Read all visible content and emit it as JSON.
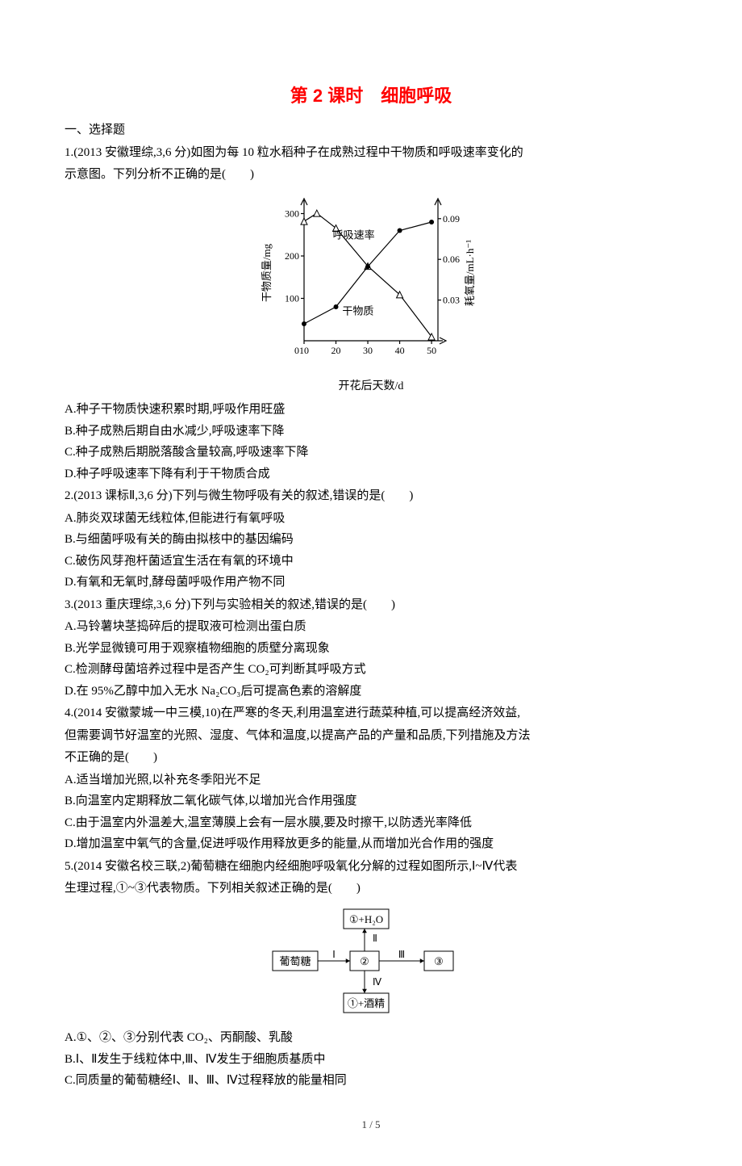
{
  "title": "第 2 课时　细胞呼吸",
  "section_heading": "一、选择题",
  "footer": "1 / 5",
  "questions": [
    {
      "stem_lines": [
        "1.(2013 安徽理综,3,6 分)如图为每 10 粒水稻种子在成熟过程中干物质和呼吸速率变化的",
        "示意图。下列分析不正确的是(　　)"
      ],
      "options": [
        "A.种子干物质快速积累时期,呼吸作用旺盛",
        "B.种子成熟后期自由水减少,呼吸速率下降",
        "C.种子成熟后期脱落酸含量较高,呼吸速率下降",
        "D.种子呼吸速率下降有利于干物质合成"
      ]
    },
    {
      "stem_lines": [
        "2.(2013 课标Ⅱ,3,6 分)下列与微生物呼吸有关的叙述,错误的是(　　)"
      ],
      "options": [
        "A.肺炎双球菌无线粒体,但能进行有氧呼吸",
        "B.与细菌呼吸有关的酶由拟核中的基因编码",
        "C.破伤风芽孢杆菌适宜生活在有氧的环境中",
        "D.有氧和无氧时,酵母菌呼吸作用产物不同"
      ]
    },
    {
      "stem_lines": [
        "3.(2013 重庆理综,3,6 分)下列与实验相关的叙述,错误的是(　　)"
      ],
      "options": [
        "A.马铃薯块茎捣碎后的提取液可检测出蛋白质",
        "B.光学显微镜可用于观察植物细胞的质壁分离现象",
        "C.检测酵母菌培养过程中是否产生 CO₂可判断其呼吸方式",
        "D.在 95%乙醇中加入无水 Na₂CO₃后可提高色素的溶解度"
      ]
    },
    {
      "stem_lines": [
        "4.(2014 安徽蒙城一中三模,10)在严寒的冬天,利用温室进行蔬菜种植,可以提高经济效益,",
        "但需要调节好温室的光照、湿度、气体和温度,以提高产品的产量和品质,下列措施及方法",
        "不正确的是(　　)"
      ],
      "options": [
        "A.适当增加光照,以补充冬季阳光不足",
        "B.向温室内定期释放二氧化碳气体,以增加光合作用强度",
        "C.由于温室内外温差大,温室薄膜上会有一层水膜,要及时擦干,以防透光率降低",
        "D.增加温室中氧气的含量,促进呼吸作用释放更多的能量,从而增加光合作用的强度"
      ]
    },
    {
      "stem_lines": [
        "5.(2014 安徽名校三联,2)葡萄糖在细胞内经细胞呼吸氧化分解的过程如图所示,Ⅰ~Ⅳ代表",
        "生理过程,①~③代表物质。下列相关叙述正确的是(　　)"
      ],
      "options": [
        "A.①、②、③分别代表 CO₂、丙酮酸、乳酸",
        "B.Ⅰ、Ⅱ发生于线粒体中,Ⅲ、Ⅳ发生于细胞质基质中",
        "C.同质量的葡萄糖经Ⅰ、Ⅱ、Ⅲ、Ⅳ过程释放的能量相同"
      ]
    }
  ],
  "fig1": {
    "caption": "开花后天数/d",
    "ylabel_left": "干物质量/mg",
    "ylabel_right": "耗氧量/mL·h⁻¹",
    "series_label_resp": "呼吸速率",
    "series_label_dry": "干物质",
    "x_ticks": [
      "10",
      "20",
      "30",
      "40",
      "50"
    ],
    "y_left_ticks": [
      "0",
      "100",
      "200",
      "300"
    ],
    "y_right_ticks": [
      "0.03",
      "0.06",
      "0.09"
    ],
    "colors": {
      "axis": "#000000",
      "resp_marker": "#ffffff",
      "resp_stroke": "#000000",
      "dry_marker": "#000000"
    },
    "line_width": 1.2,
    "marker_size": 4,
    "resp_points": [
      [
        10,
        0.088
      ],
      [
        14,
        0.094
      ],
      [
        20,
        0.083
      ],
      [
        30,
        0.055
      ],
      [
        40,
        0.034
      ],
      [
        50,
        0.003
      ]
    ],
    "dry_points": [
      [
        10,
        40
      ],
      [
        20,
        80
      ],
      [
        30,
        175
      ],
      [
        40,
        260
      ],
      [
        50,
        280
      ]
    ],
    "xlim": [
      10,
      52
    ],
    "ylim_left": [
      0,
      320
    ],
    "ylim_right": [
      0,
      0.1
    ]
  },
  "fig2": {
    "labels": {
      "glucose": "葡萄糖",
      "top": "①+H₂O",
      "center": "②",
      "right": "③",
      "bottom": "①+酒精",
      "I": "Ⅰ",
      "II": "Ⅱ",
      "III": "Ⅲ",
      "IV": "Ⅳ"
    },
    "colors": {
      "stroke": "#000000",
      "fill": "#ffffff",
      "text": "#000000"
    },
    "line_width": 1
  }
}
